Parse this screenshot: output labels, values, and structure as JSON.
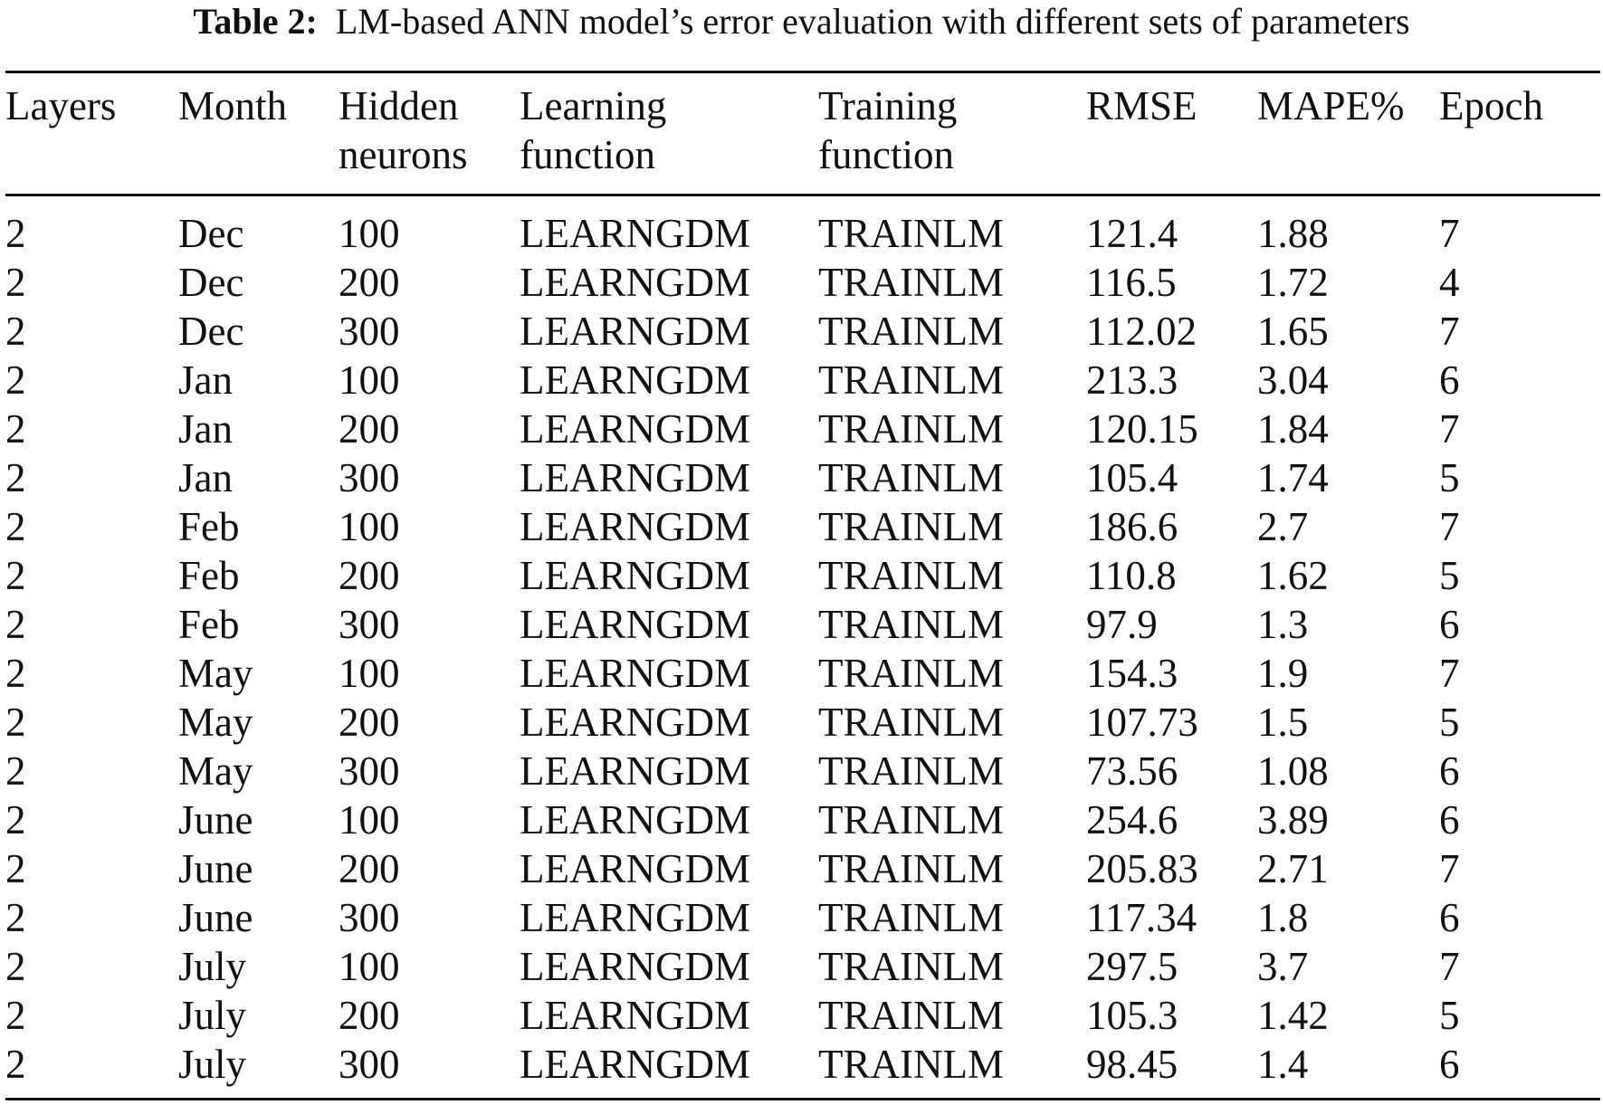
{
  "caption": {
    "label": "Table 2:",
    "text": "LM-based ANN model’s error evaluation with different sets of parameters"
  },
  "table": {
    "headers": [
      [
        "Layers"
      ],
      [
        "Month"
      ],
      [
        "Hidden",
        "neurons"
      ],
      [
        "Learning",
        "function"
      ],
      [
        "Training",
        "function"
      ],
      [
        "RMSE"
      ],
      [
        "MAPE%"
      ],
      [
        "Epoch"
      ]
    ],
    "rows": [
      [
        "2",
        "Dec",
        "100",
        "LEARNGDM",
        "TRAINLM",
        "121.4",
        "1.88",
        "7"
      ],
      [
        "2",
        "Dec",
        "200",
        "LEARNGDM",
        "TRAINLM",
        "116.5",
        "1.72",
        "4"
      ],
      [
        "2",
        "Dec",
        "300",
        "LEARNGDM",
        "TRAINLM",
        "112.02",
        "1.65",
        "7"
      ],
      [
        "2",
        "Jan",
        "100",
        "LEARNGDM",
        "TRAINLM",
        "213.3",
        "3.04",
        "6"
      ],
      [
        "2",
        "Jan",
        "200",
        "LEARNGDM",
        "TRAINLM",
        "120.15",
        "1.84",
        "7"
      ],
      [
        "2",
        "Jan",
        "300",
        "LEARNGDM",
        "TRAINLM",
        "105.4",
        "1.74",
        "5"
      ],
      [
        "2",
        "Feb",
        "100",
        "LEARNGDM",
        "TRAINLM",
        "186.6",
        "2.7",
        "7"
      ],
      [
        "2",
        "Feb",
        "200",
        "LEARNGDM",
        "TRAINLM",
        "110.8",
        "1.62",
        "5"
      ],
      [
        "2",
        "Feb",
        "300",
        "LEARNGDM",
        "TRAINLM",
        "97.9",
        "1.3",
        "6"
      ],
      [
        "2",
        "May",
        "100",
        "LEARNGDM",
        "TRAINLM",
        "154.3",
        "1.9",
        "7"
      ],
      [
        "2",
        "May",
        "200",
        "LEARNGDM",
        "TRAINLM",
        "107.73",
        "1.5",
        "5"
      ],
      [
        "2",
        "May",
        "300",
        "LEARNGDM",
        "TRAINLM",
        "73.56",
        "1.08",
        "6"
      ],
      [
        "2",
        "June",
        "100",
        "LEARNGDM",
        "TRAINLM",
        "254.6",
        "3.89",
        "6"
      ],
      [
        "2",
        "June",
        "200",
        "LEARNGDM",
        "TRAINLM",
        "205.83",
        "2.71",
        "7"
      ],
      [
        "2",
        "June",
        "300",
        "LEARNGDM",
        "TRAINLM",
        "117.34",
        "1.8",
        "6"
      ],
      [
        "2",
        "July",
        "100",
        "LEARNGDM",
        "TRAINLM",
        "297.5",
        "3.7",
        "7"
      ],
      [
        "2",
        "July",
        "200",
        "LEARNGDM",
        "TRAINLM",
        "105.3",
        "1.42",
        "5"
      ],
      [
        "2",
        "July",
        "300",
        "LEARNGDM",
        "TRAINLM",
        "98.45",
        "1.4",
        "6"
      ]
    ]
  }
}
